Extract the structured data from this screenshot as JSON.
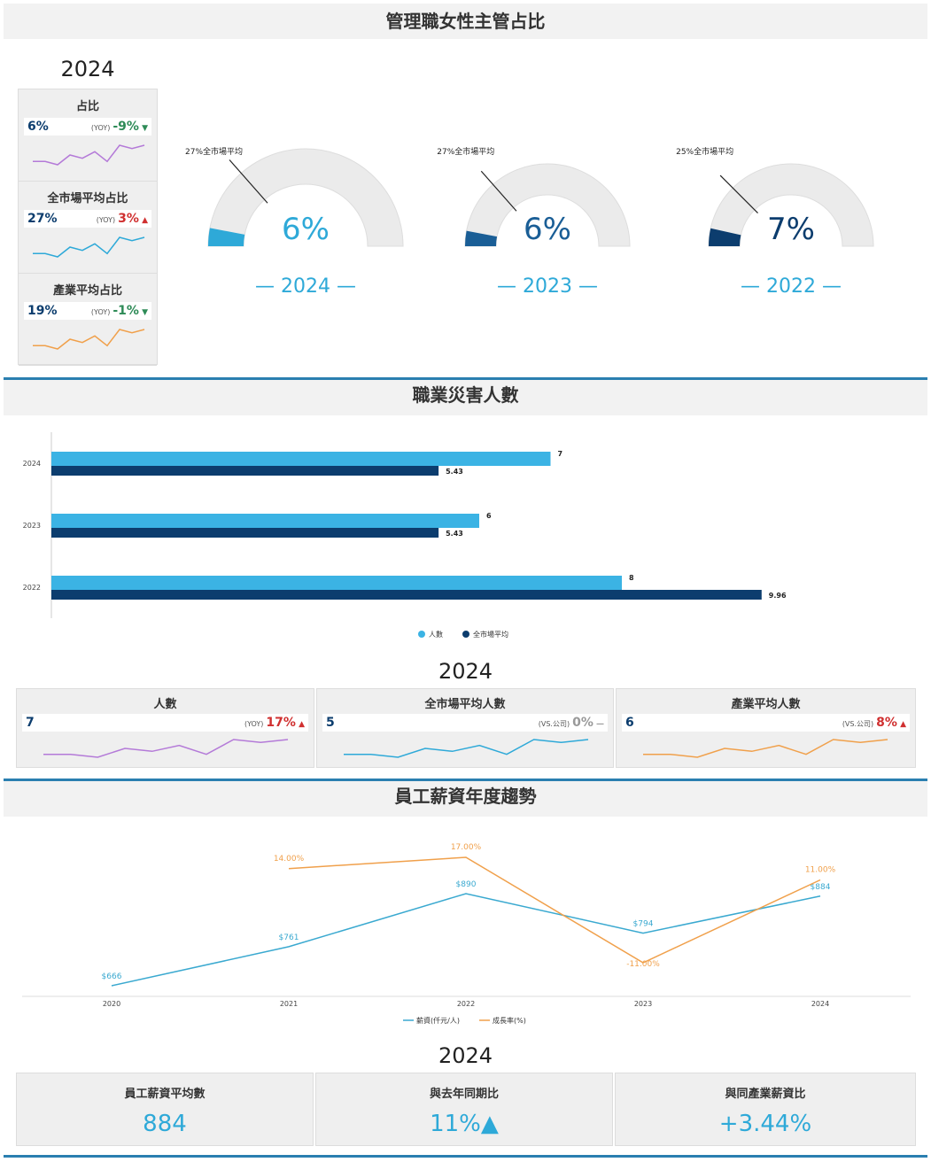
{
  "section1": {
    "title": "管理職女性主管占比",
    "year": "2024",
    "kpis": [
      {
        "label": "占比",
        "value": "6%",
        "yoy_label": "(YOY)",
        "yoy": "-9%",
        "dir": "down",
        "spark_color": "#b47ad8",
        "spark": [
          3,
          3,
          2,
          5,
          4,
          6,
          3,
          8,
          7,
          8
        ]
      },
      {
        "label": "全市場平均占比",
        "value": "27%",
        "yoy_label": "(YOY)",
        "yoy": "3%",
        "dir": "up",
        "spark_color": "#2ea9d8",
        "spark": [
          3,
          3,
          2,
          5,
          4,
          6,
          3,
          8,
          7,
          8
        ]
      },
      {
        "label": "產業平均占比",
        "value": "19%",
        "yoy_label": "(YOY)",
        "yoy": "-1%",
        "dir": "down",
        "spark_color": "#f0a04b",
        "spark": [
          3,
          3,
          2,
          5,
          4,
          6,
          3,
          8,
          7,
          8
        ]
      }
    ],
    "gauges": [
      {
        "year": "— 2024 —",
        "value_text": "6%",
        "value": 6,
        "market_text": "27%全市場平均",
        "market": 27,
        "color": "#2ea9d8",
        "text_color": "#2ea9d8"
      },
      {
        "year": "— 2023 —",
        "value_text": "6%",
        "value": 6,
        "market_text": "27%全市場平均",
        "market": 27,
        "color": "#1a5e96",
        "text_color": "#1a5e96"
      },
      {
        "year": "— 2022 —",
        "value_text": "7%",
        "value": 7,
        "market_text": "25%全市場平均",
        "market": 25,
        "color": "#0c3d6e",
        "text_color": "#0c3d6e"
      }
    ]
  },
  "section2": {
    "title": "職業災害人數",
    "year": "2024",
    "legend": [
      "人數",
      "全市場平均"
    ],
    "colors": [
      "#3bb3e4",
      "#0c3d6e"
    ],
    "bottom": [
      {
        "label": "人數",
        "value": "7",
        "yoy_label": "(YOY)",
        "yoy": "17%",
        "dir": "up",
        "spark_color": "#b47ad8",
        "spark": [
          3,
          3,
          2,
          5,
          4,
          6,
          3,
          8,
          7,
          8
        ]
      },
      {
        "label": "全市場平均人數",
        "value": "5",
        "yoy_label": "(VS.公司)",
        "yoy": "0%",
        "dir": "flat",
        "spark_color": "#2ea9d8",
        "spark": [
          3,
          3,
          2,
          5,
          4,
          6,
          3,
          8,
          7,
          8
        ]
      },
      {
        "label": "產業平均人數",
        "value": "6",
        "yoy_label": "(VS.公司)",
        "yoy": "8%",
        "dir": "up",
        "spark_color": "#f0a04b",
        "spark": [
          3,
          3,
          2,
          5,
          4,
          6,
          3,
          8,
          7,
          8
        ]
      }
    ]
  },
  "section3": {
    "title": "員工薪資年度趨勢",
    "year": "2024",
    "legend": [
      "薪資(仟元/人)",
      "成長率(%)"
    ],
    "colors": [
      "#3aa9d0",
      "#f0a04b"
    ],
    "boxes": [
      {
        "label": "員工薪資平均數",
        "value": "884"
      },
      {
        "label": "與去年同期比",
        "value": "11%▲"
      },
      {
        "label": "與同產業薪資比",
        "value": "+3.44%"
      }
    ]
  },
  "chart_data": [
    {
      "type": "bar",
      "orientation": "horizontal",
      "categories": [
        "2024",
        "2023",
        "2022"
      ],
      "series": [
        {
          "name": "人數",
          "values": [
            7,
            6,
            8
          ],
          "labels": [
            "7",
            "6",
            "8"
          ]
        },
        {
          "name": "全市場平均",
          "values": [
            5.43,
            5.43,
            9.96
          ],
          "labels": [
            "5.43",
            "5.43",
            "9.96"
          ]
        }
      ],
      "xlim": [
        0,
        12
      ]
    },
    {
      "type": "line",
      "categories": [
        "2020",
        "2021",
        "2022",
        "2023",
        "2024"
      ],
      "series": [
        {
          "name": "薪資(仟元/人)",
          "values": [
            666,
            761,
            890,
            794,
            884
          ],
          "labels": [
            "$666",
            "$761",
            "$890",
            "$794",
            "$884"
          ]
        },
        {
          "name": "成長率(%)",
          "values": [
            null,
            14,
            17,
            -11,
            11
          ],
          "labels": [
            "",
            "14.00%",
            "17.00%",
            "-11.00%",
            "11.00%"
          ]
        }
      ]
    }
  ]
}
